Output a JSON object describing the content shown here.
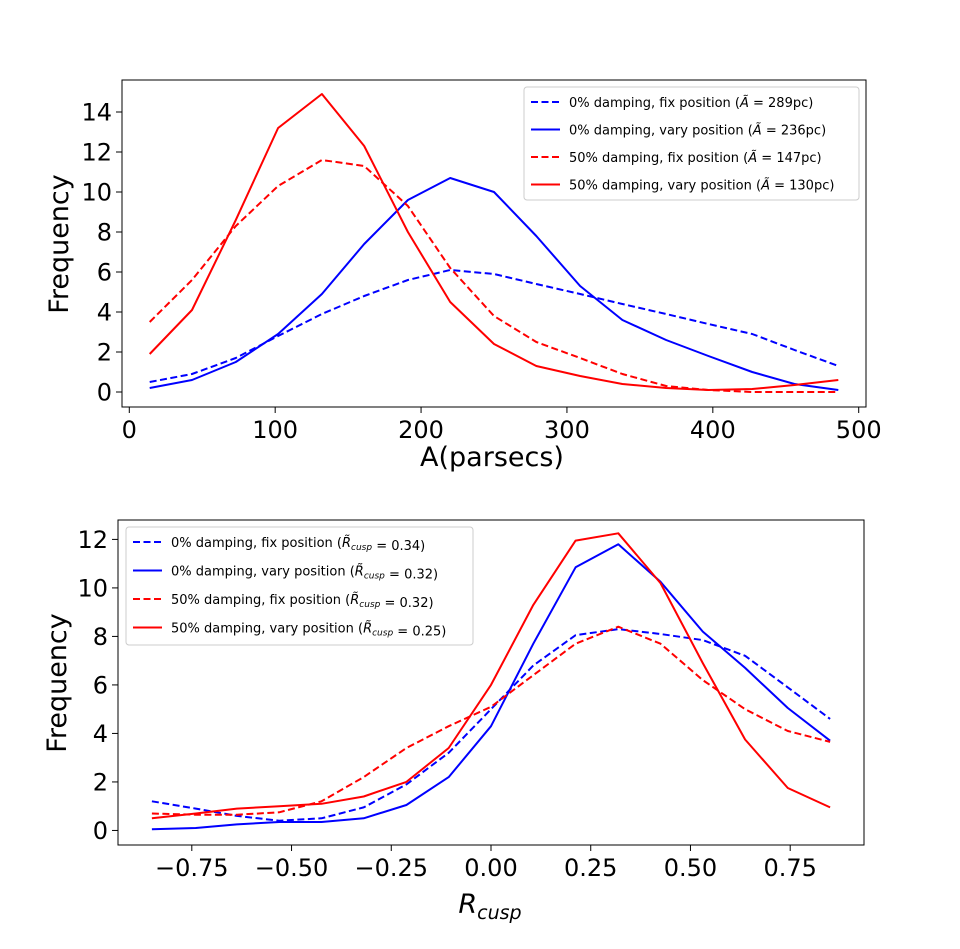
{
  "chart_data": [
    {
      "type": "line",
      "xlabel": "A(parsecs)",
      "ylabel": "Frequency",
      "xlim": [
        -5,
        505
      ],
      "ylim": [
        -0.75,
        15.6
      ],
      "xticks": [
        0,
        100,
        200,
        300,
        400,
        500
      ],
      "yticks": [
        0,
        2,
        4,
        6,
        8,
        10,
        12,
        14
      ],
      "legend_position": "top-right",
      "x": [
        14,
        43,
        73,
        102,
        132,
        161,
        191,
        220,
        250,
        279,
        309,
        338,
        368,
        397,
        427,
        456,
        486
      ],
      "series": [
        {
          "name": "0% damping, fix position",
          "median_value": "289pc",
          "color": "#0000ff",
          "dash": "dashed",
          "values": [
            0.5,
            0.9,
            1.7,
            2.8,
            3.9,
            4.8,
            5.6,
            6.1,
            5.9,
            5.4,
            4.9,
            4.4,
            3.9,
            3.4,
            2.9,
            2.1,
            1.3
          ]
        },
        {
          "name": "0% damping, vary position",
          "median_value": "236pc",
          "color": "#0000ff",
          "dash": "solid",
          "values": [
            0.2,
            0.6,
            1.5,
            2.9,
            4.9,
            7.4,
            9.6,
            10.7,
            10.0,
            7.8,
            5.3,
            3.6,
            2.6,
            1.8,
            1.0,
            0.4,
            0.1
          ]
        },
        {
          "name": "50% damping, fix position",
          "median_value": "147pc",
          "color": "#ff0000",
          "dash": "dashed",
          "values": [
            3.5,
            5.6,
            8.3,
            10.3,
            11.6,
            11.3,
            9.3,
            6.2,
            3.8,
            2.5,
            1.7,
            0.9,
            0.3,
            0.1,
            0.0,
            0.0,
            0.0
          ]
        },
        {
          "name": "50% damping, vary position",
          "median_value": "130pc",
          "color": "#ff0000",
          "dash": "solid",
          "values": [
            1.9,
            4.1,
            8.6,
            13.2,
            14.9,
            12.3,
            8.0,
            4.5,
            2.4,
            1.3,
            0.8,
            0.4,
            0.2,
            0.1,
            0.15,
            0.35,
            0.6
          ]
        }
      ]
    },
    {
      "type": "line",
      "xlabel": "R_cusp",
      "ylabel": "Frequency",
      "xlim": [
        -0.935,
        0.935
      ],
      "ylim": [
        -0.6,
        12.8
      ],
      "xticks": [
        -0.75,
        -0.5,
        -0.25,
        0.0,
        0.25,
        0.5,
        0.75
      ],
      "xtick_labels": [
        "−0.75",
        "−0.50",
        "−0.25",
        "0.00",
        "0.25",
        "0.50",
        "0.75"
      ],
      "yticks": [
        0,
        2,
        4,
        6,
        8,
        10,
        12
      ],
      "legend_position": "top-left",
      "x": [
        -0.85,
        -0.74,
        -0.637,
        -0.531,
        -0.425,
        -0.319,
        -0.212,
        -0.106,
        0.0,
        0.106,
        0.212,
        0.319,
        0.425,
        0.531,
        0.637,
        0.744,
        0.85
      ],
      "series": [
        {
          "name": "0% damping, fix position",
          "median_value": "0.34",
          "color": "#0000ff",
          "dash": "dashed",
          "values": [
            1.2,
            0.9,
            0.6,
            0.4,
            0.5,
            0.95,
            1.9,
            3.2,
            5.0,
            6.8,
            8.05,
            8.3,
            8.1,
            7.85,
            7.2,
            5.9,
            4.6
          ]
        },
        {
          "name": "0% damping, vary position",
          "median_value": "0.32",
          "color": "#0000ff",
          "dash": "solid",
          "values": [
            0.05,
            0.1,
            0.25,
            0.35,
            0.35,
            0.5,
            1.05,
            2.2,
            4.3,
            7.7,
            10.85,
            11.8,
            10.25,
            8.2,
            6.7,
            5.05,
            3.7
          ]
        },
        {
          "name": "50% damping, fix position",
          "median_value": "0.32",
          "color": "#ff0000",
          "dash": "dashed",
          "values": [
            0.7,
            0.65,
            0.65,
            0.75,
            1.2,
            2.2,
            3.4,
            4.3,
            5.1,
            6.4,
            7.7,
            8.4,
            7.7,
            6.2,
            5.0,
            4.1,
            3.65
          ]
        },
        {
          "name": "50% damping, vary position",
          "median_value": "0.25",
          "color": "#ff0000",
          "dash": "solid",
          "values": [
            0.5,
            0.7,
            0.9,
            1.0,
            1.1,
            1.4,
            2.0,
            3.4,
            6.0,
            9.3,
            11.95,
            12.25,
            10.2,
            6.9,
            3.75,
            1.75,
            0.95
          ]
        }
      ]
    }
  ]
}
